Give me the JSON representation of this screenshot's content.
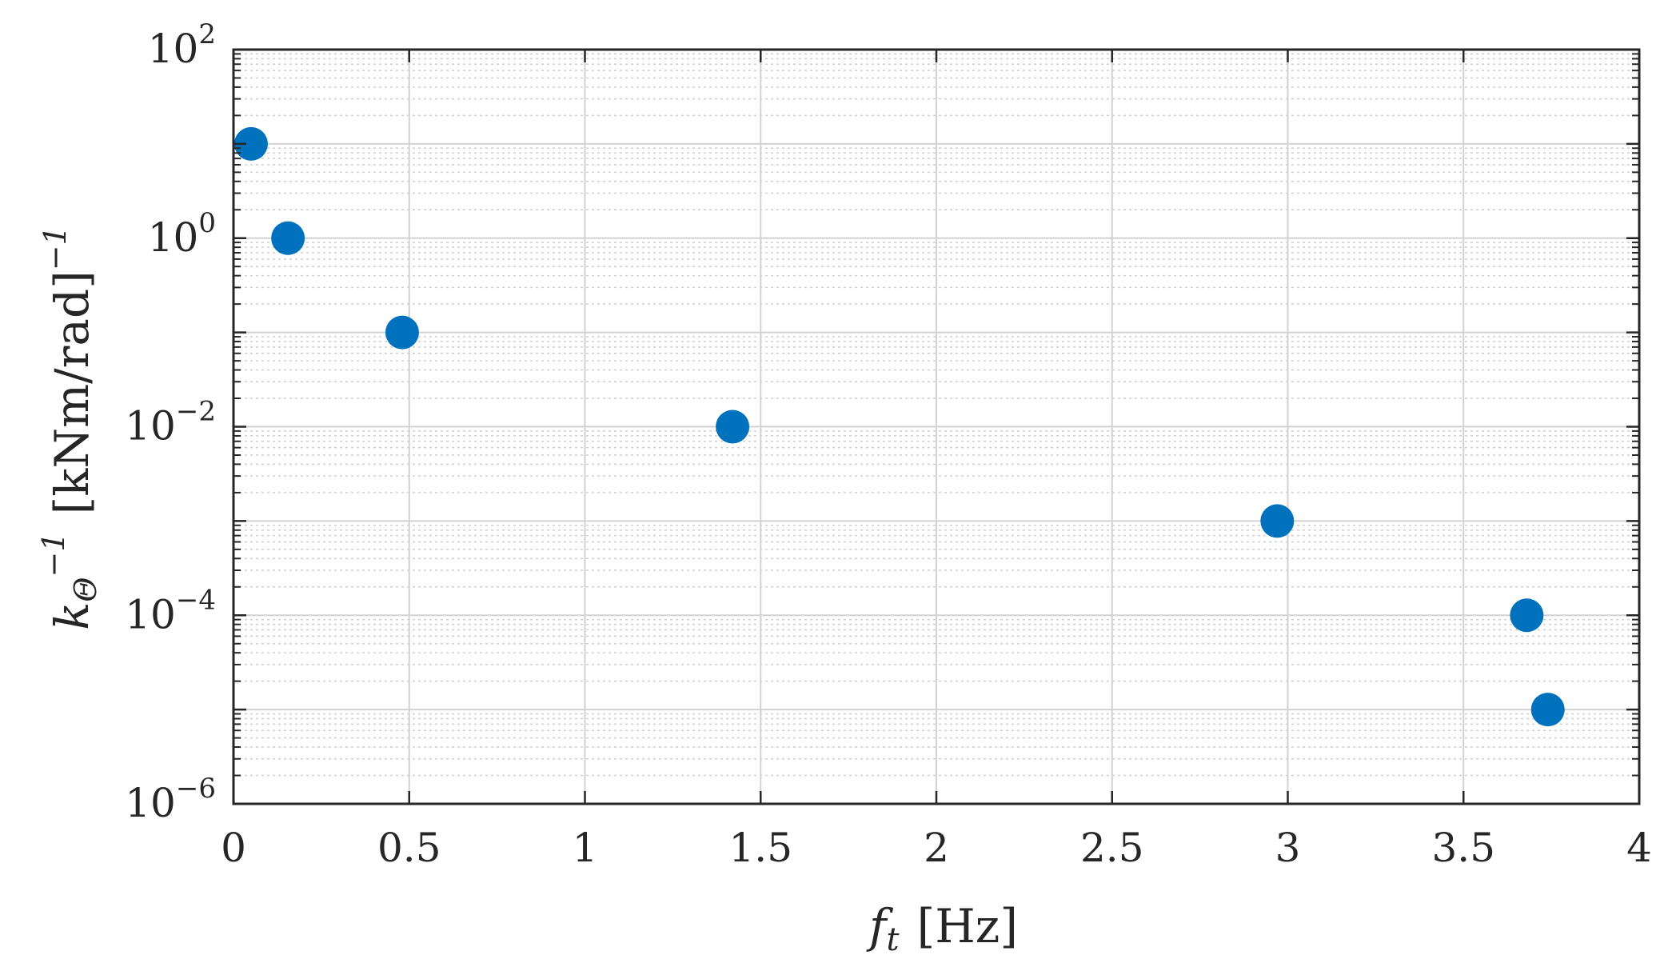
{
  "chart_data": {
    "type": "scatter",
    "xlabel": {
      "var": "f",
      "sub": "t",
      "unit": "[Hz]"
    },
    "ylabel": {
      "var": "k",
      "sub": "Θ",
      "sup": "−1",
      "unit": "[kNm/rad]",
      "unit_sup": "−1"
    },
    "xlim": [
      0,
      4
    ],
    "ylim": [
      1e-06,
      100
    ],
    "yscale": "log",
    "grid": true,
    "minor_grid": true,
    "x_ticks": [
      {
        "value": 0,
        "label": "0"
      },
      {
        "value": 0.5,
        "label": "0.5"
      },
      {
        "value": 1,
        "label": "1"
      },
      {
        "value": 1.5,
        "label": "1.5"
      },
      {
        "value": 2,
        "label": "2"
      },
      {
        "value": 2.5,
        "label": "2.5"
      },
      {
        "value": 3,
        "label": "3"
      },
      {
        "value": 3.5,
        "label": "3.5"
      },
      {
        "value": 4,
        "label": "4"
      }
    ],
    "y_ticks": [
      {
        "value": 100,
        "base": "10",
        "exp": "2"
      },
      {
        "value": 1,
        "base": "10",
        "exp": "0"
      },
      {
        "value": 0.01,
        "base": "10",
        "exp": "−2"
      },
      {
        "value": 0.0001,
        "base": "10",
        "exp": "−4"
      },
      {
        "value": 1e-06,
        "base": "10",
        "exp": "−6"
      }
    ],
    "series": [
      {
        "color": "#0072BD",
        "points": [
          {
            "x": 0.05,
            "y": 10
          },
          {
            "x": 0.155,
            "y": 1
          },
          {
            "x": 0.48,
            "y": 0.1
          },
          {
            "x": 1.42,
            "y": 0.01
          },
          {
            "x": 2.97,
            "y": 0.001
          },
          {
            "x": 3.68,
            "y": 0.0001
          },
          {
            "x": 3.74,
            "y": 1e-05
          }
        ]
      }
    ]
  }
}
